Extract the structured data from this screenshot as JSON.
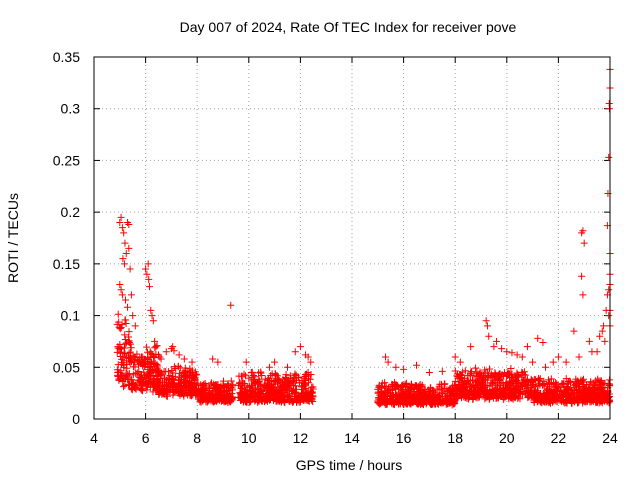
{
  "chart_data": {
    "type": "scatter",
    "title": "Day 007 of 2024, Rate Of TEC Index for receiver pove",
    "xlabel": "GPS time / hours",
    "ylabel": "ROTI / TECUs",
    "xlim": [
      4,
      24
    ],
    "ylim": [
      0,
      0.35
    ],
    "xticks": [
      "4",
      "6",
      "8",
      "10",
      "12",
      "14",
      "16",
      "18",
      "20",
      "22",
      "24"
    ],
    "yticks": [
      "0",
      "0.05",
      "0.1",
      "0.15",
      "0.2",
      "0.25",
      "0.3",
      "0.35"
    ],
    "grid": true,
    "marker": "+",
    "color": "#ff0000",
    "segments": [
      {
        "x_start": 4.9,
        "x_end": 5.4,
        "base": 0.045,
        "spread": 0.06
      },
      {
        "x_start": 5.4,
        "x_end": 6.5,
        "base": 0.035,
        "spread": 0.04
      },
      {
        "x_start": 6.5,
        "x_end": 8.0,
        "base": 0.028,
        "spread": 0.025
      },
      {
        "x_start": 8.0,
        "x_end": 9.4,
        "base": 0.02,
        "spread": 0.018
      },
      {
        "x_start": 9.6,
        "x_end": 12.5,
        "base": 0.022,
        "spread": 0.025
      },
      {
        "x_start": 15.0,
        "x_end": 18.0,
        "base": 0.018,
        "spread": 0.018
      },
      {
        "x_start": 18.0,
        "x_end": 21.0,
        "base": 0.025,
        "spread": 0.025
      },
      {
        "x_start": 21.0,
        "x_end": 24.0,
        "base": 0.02,
        "spread": 0.02
      }
    ],
    "points": [
      [
        5.0,
        0.19
      ],
      [
        5.05,
        0.195
      ],
      [
        5.1,
        0.185
      ],
      [
        5.15,
        0.18
      ],
      [
        5.2,
        0.17
      ],
      [
        5.3,
        0.19
      ],
      [
        5.35,
        0.188
      ],
      [
        5.25,
        0.16
      ],
      [
        5.12,
        0.155
      ],
      [
        5.18,
        0.15
      ],
      [
        5.0,
        0.13
      ],
      [
        5.05,
        0.125
      ],
      [
        5.1,
        0.12
      ],
      [
        5.22,
        0.115
      ],
      [
        5.3,
        0.108
      ],
      [
        5.35,
        0.165
      ],
      [
        5.4,
        0.145
      ],
      [
        5.45,
        0.12
      ],
      [
        5.5,
        0.1
      ],
      [
        5.6,
        0.09
      ],
      [
        6.0,
        0.145
      ],
      [
        6.05,
        0.14
      ],
      [
        6.1,
        0.15
      ],
      [
        6.12,
        0.135
      ],
      [
        6.15,
        0.128
      ],
      [
        6.2,
        0.105
      ],
      [
        6.25,
        0.1
      ],
      [
        6.3,
        0.095
      ],
      [
        6.35,
        0.075
      ],
      [
        6.4,
        0.07
      ],
      [
        6.5,
        0.062
      ],
      [
        6.55,
        0.06
      ],
      [
        6.6,
        0.058
      ],
      [
        6.8,
        0.065
      ],
      [
        7.0,
        0.068
      ],
      [
        7.05,
        0.07
      ],
      [
        7.1,
        0.066
      ],
      [
        7.3,
        0.062
      ],
      [
        7.5,
        0.058
      ],
      [
        7.8,
        0.055
      ],
      [
        8.6,
        0.058
      ],
      [
        8.8,
        0.055
      ],
      [
        9.3,
        0.11
      ],
      [
        9.9,
        0.055
      ],
      [
        10.1,
        0.045
      ],
      [
        10.5,
        0.042
      ],
      [
        10.8,
        0.05
      ],
      [
        11.0,
        0.055
      ],
      [
        11.5,
        0.05
      ],
      [
        11.8,
        0.065
      ],
      [
        12.0,
        0.07
      ],
      [
        12.2,
        0.062
      ],
      [
        12.3,
        0.06
      ],
      [
        12.4,
        0.055
      ],
      [
        15.3,
        0.06
      ],
      [
        15.4,
        0.055
      ],
      [
        15.7,
        0.05
      ],
      [
        16.0,
        0.048
      ],
      [
        16.5,
        0.052
      ],
      [
        17.0,
        0.045
      ],
      [
        17.5,
        0.046
      ],
      [
        18.0,
        0.06
      ],
      [
        18.2,
        0.055
      ],
      [
        18.6,
        0.07
      ],
      [
        19.2,
        0.095
      ],
      [
        19.25,
        0.09
      ],
      [
        19.3,
        0.08
      ],
      [
        19.5,
        0.07
      ],
      [
        19.6,
        0.075
      ],
      [
        19.8,
        0.068
      ],
      [
        20.0,
        0.065
      ],
      [
        20.2,
        0.064
      ],
      [
        20.4,
        0.062
      ],
      [
        20.6,
        0.06
      ],
      [
        20.8,
        0.07
      ],
      [
        21.2,
        0.078
      ],
      [
        21.4,
        0.074
      ],
      [
        21.0,
        0.055
      ],
      [
        21.5,
        0.05
      ],
      [
        21.8,
        0.055
      ],
      [
        22.0,
        0.06
      ],
      [
        22.3,
        0.055
      ],
      [
        22.6,
        0.085
      ],
      [
        22.8,
        0.06
      ],
      [
        22.9,
        0.138
      ],
      [
        22.95,
        0.12
      ],
      [
        22.9,
        0.18
      ],
      [
        22.95,
        0.182
      ],
      [
        23.0,
        0.17
      ],
      [
        23.2,
        0.075
      ],
      [
        23.3,
        0.065
      ],
      [
        23.5,
        0.065
      ],
      [
        23.6,
        0.08
      ],
      [
        23.7,
        0.085
      ],
      [
        23.75,
        0.09
      ],
      [
        23.8,
        0.075
      ],
      [
        23.85,
        0.105
      ],
      [
        23.9,
        0.187
      ],
      [
        23.92,
        0.218
      ],
      [
        23.95,
        0.253
      ],
      [
        23.97,
        0.305
      ],
      [
        24.0,
        0.338
      ],
      [
        24.0,
        0.32
      ],
      [
        23.98,
        0.3
      ],
      [
        24.0,
        0.13
      ],
      [
        24.0,
        0.14
      ],
      [
        23.95,
        0.125
      ],
      [
        24.0,
        0.16
      ],
      [
        24.0,
        0.105
      ],
      [
        23.9,
        0.12
      ],
      [
        23.95,
        0.1
      ],
      [
        24.0,
        0.09
      ]
    ]
  }
}
